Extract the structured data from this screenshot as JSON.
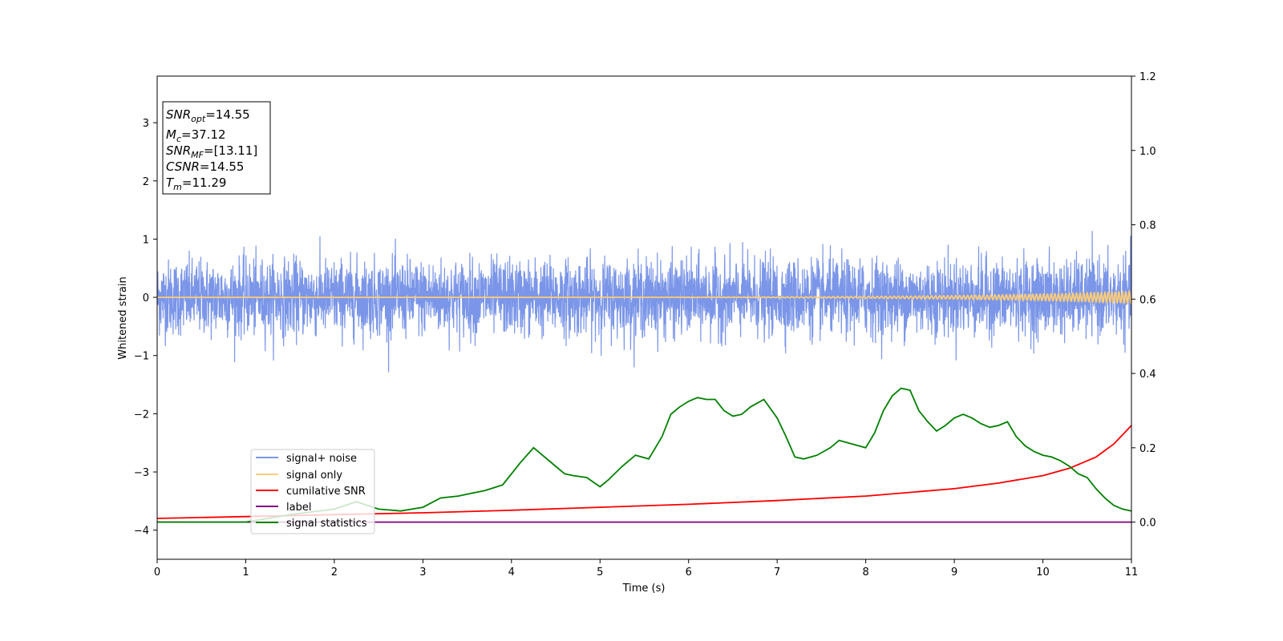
{
  "chart_data": {
    "type": "line",
    "xlabel": "Time (s)",
    "ylabel": "Whitened strain",
    "xlim": [
      0,
      11
    ],
    "ylim": [
      -4.5,
      3.8
    ],
    "ylim_right": [
      -0.1,
      1.2
    ],
    "grid": false,
    "x_ticks": [
      "0",
      "1",
      "2",
      "3",
      "4",
      "5",
      "6",
      "7",
      "8",
      "9",
      "10",
      "11"
    ],
    "y_ticks": [
      "3",
      "2",
      "1",
      "0",
      "−1",
      "−2",
      "−3",
      "−4"
    ],
    "y_ticks_right": [
      "1.2",
      "1.0",
      "0.8",
      "0.6",
      "0.4",
      "0.2",
      "0.0"
    ],
    "annotation": {
      "lines": [
        {
          "main": "SNR",
          "sub": "opt",
          "value": "=14.55"
        },
        {
          "main": "M",
          "sub": "c",
          "value": "=37.12"
        },
        {
          "main": "SNR",
          "sub": "MF",
          "value": "=[13.11]"
        },
        {
          "main": "CSNR",
          "sub": "",
          "value": "=14.55"
        },
        {
          "main": "T",
          "sub": "m",
          "value": "=11.29"
        }
      ]
    },
    "legend": {
      "placement": "lower-left",
      "entries": [
        {
          "label": "signal+ noise",
          "color": "#7b96e8"
        },
        {
          "label": "signal only",
          "color": "#ffcc77"
        },
        {
          "label": "cumilative SNR",
          "color": "#ff0000"
        },
        {
          "label": "label",
          "color": "#800080"
        },
        {
          "label": "signal statistics",
          "color": "#008000"
        }
      ]
    },
    "series": [
      {
        "name": "signal+ noise",
        "color": "#7b96e8",
        "axis": "left",
        "noise_std": 0.32,
        "x_range": [
          0,
          11
        ]
      },
      {
        "name": "signal only",
        "color": "#ffcc77",
        "axis": "left",
        "chirp_amplitude_end": 0.1,
        "x_range": [
          0,
          11
        ]
      },
      {
        "name": "cumilative SNR",
        "color": "#ff0000",
        "axis": "right",
        "x": [
          0,
          1,
          2,
          3,
          4,
          5,
          6,
          7,
          8,
          9,
          9.5,
          10,
          10.3,
          10.6,
          10.8,
          10.9,
          11
        ],
        "y": [
          0.01,
          0.015,
          0.02,
          0.025,
          0.032,
          0.04,
          0.048,
          0.058,
          0.07,
          0.09,
          0.105,
          0.125,
          0.145,
          0.175,
          0.21,
          0.235,
          0.26
        ]
      },
      {
        "name": "label",
        "color": "#800080",
        "axis": "right",
        "x": [
          0,
          11
        ],
        "y": [
          0.0,
          0.0
        ]
      },
      {
        "name": "signal statistics",
        "color": "#008000",
        "axis": "right",
        "x": [
          0,
          1,
          1.5,
          2,
          2.25,
          2.5,
          2.75,
          3,
          3.2,
          3.4,
          3.5,
          3.7,
          3.9,
          4.1,
          4.25,
          4.35,
          4.5,
          4.6,
          4.7,
          4.85,
          5,
          5.1,
          5.25,
          5.4,
          5.55,
          5.7,
          5.8,
          5.9,
          6.0,
          6.1,
          6.2,
          6.3,
          6.4,
          6.5,
          6.6,
          6.7,
          6.85,
          7.0,
          7.1,
          7.2,
          7.3,
          7.45,
          7.6,
          7.7,
          7.85,
          8.0,
          8.1,
          8.2,
          8.3,
          8.4,
          8.5,
          8.6,
          8.7,
          8.8,
          8.9,
          9.0,
          9.1,
          9.2,
          9.3,
          9.4,
          9.5,
          9.6,
          9.7,
          9.8,
          9.9,
          10.0,
          10.1,
          10.2,
          10.3,
          10.4,
          10.5,
          10.6,
          10.7,
          10.8,
          10.9,
          11.0
        ],
        "y": [
          0.0,
          0.0,
          0.02,
          0.035,
          0.055,
          0.035,
          0.03,
          0.04,
          0.065,
          0.07,
          0.075,
          0.085,
          0.1,
          0.16,
          0.2,
          0.18,
          0.15,
          0.13,
          0.125,
          0.12,
          0.095,
          0.115,
          0.15,
          0.18,
          0.17,
          0.23,
          0.29,
          0.31,
          0.325,
          0.335,
          0.33,
          0.33,
          0.3,
          0.285,
          0.29,
          0.31,
          0.33,
          0.28,
          0.23,
          0.175,
          0.17,
          0.18,
          0.2,
          0.22,
          0.21,
          0.2,
          0.24,
          0.3,
          0.34,
          0.36,
          0.355,
          0.3,
          0.27,
          0.245,
          0.26,
          0.28,
          0.29,
          0.28,
          0.265,
          0.255,
          0.26,
          0.27,
          0.23,
          0.205,
          0.19,
          0.18,
          0.175,
          0.165,
          0.15,
          0.13,
          0.12,
          0.09,
          0.065,
          0.045,
          0.035,
          0.03
        ]
      }
    ]
  }
}
